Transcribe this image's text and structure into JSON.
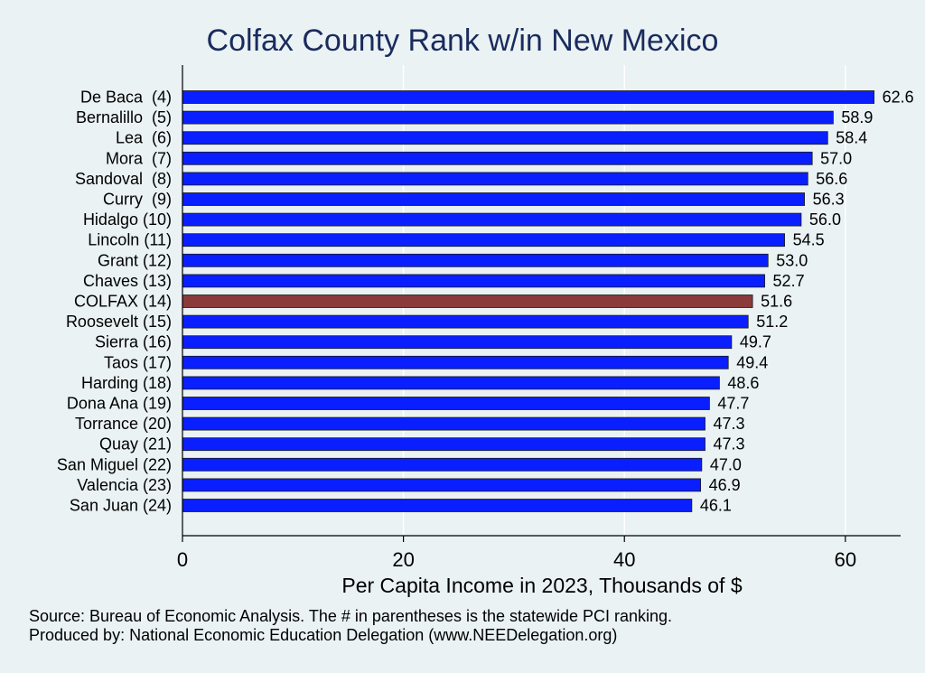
{
  "chart_data": {
    "type": "bar",
    "orientation": "horizontal",
    "title": "Colfax County Rank w/in New Mexico",
    "xlabel": "Per Capita Income in 2023, Thousands of $",
    "ylabel": "",
    "xlim": [
      0,
      65
    ],
    "xticks": [
      0,
      20,
      40,
      60
    ],
    "grid": true,
    "legend": "none",
    "categories": [
      "De Baca  (4)",
      "Bernalillo  (5)",
      "Lea  (6)",
      "Mora  (7)",
      "Sandoval  (8)",
      "Curry  (9)",
      "Hidalgo (10)",
      "Lincoln (11)",
      "Grant (12)",
      "Chaves (13)",
      "COLFAX (14)",
      "Roosevelt (15)",
      "Sierra (16)",
      "Taos (17)",
      "Harding (18)",
      "Dona Ana (19)",
      "Torrance (20)",
      "Quay (21)",
      "San Miguel (22)",
      "Valencia (23)",
      "San Juan (24)"
    ],
    "values": [
      62.6,
      58.9,
      58.4,
      57.0,
      56.6,
      56.3,
      56.0,
      54.5,
      53.0,
      52.7,
      51.6,
      51.2,
      49.7,
      49.4,
      48.6,
      47.7,
      47.3,
      47.3,
      47.0,
      46.9,
      46.1
    ],
    "value_labels": [
      "62.6",
      "58.9",
      "58.4",
      "57.0",
      "56.6",
      "56.3",
      "56.0",
      "54.5",
      "53.0",
      "52.7",
      "51.6",
      "51.2",
      "49.7",
      "49.4",
      "48.6",
      "47.7",
      "47.3",
      "47.3",
      "47.0",
      "46.9",
      "46.1"
    ],
    "highlight_index": 10,
    "colors": {
      "bar": "#0a1fff",
      "highlight": "#8b3a3a",
      "grid": "#ffffff",
      "background": "#eaf2f3",
      "title": "#1a2b5e"
    }
  },
  "notes": {
    "source": "Source: Bureau of Economic Analysis. The # in parentheses is the statewide PCI ranking.",
    "produced_by": "Produced by: National Economic Education Delegation (www.NEEDelegation.org)"
  }
}
